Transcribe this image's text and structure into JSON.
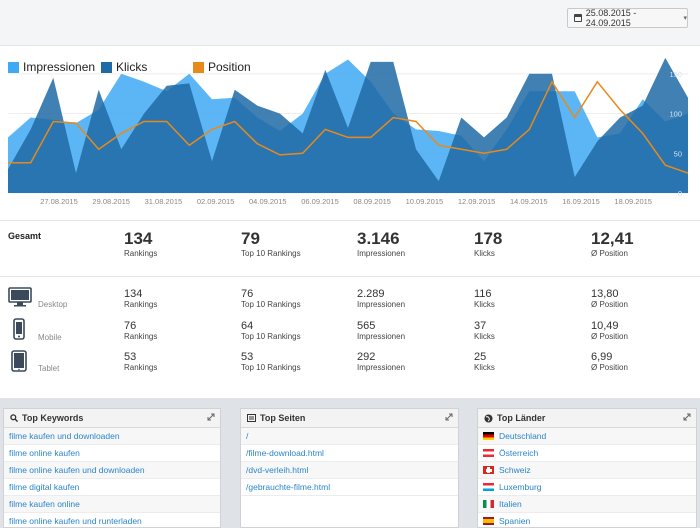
{
  "date_range": "25.08.2015 - 24.09.2015",
  "chart_data": {
    "type": "area",
    "x_ticks": [
      "27.08.2015",
      "29.08.2015",
      "31.08.2015",
      "02.09.2015",
      "04.09.2015",
      "06.09.2015",
      "08.09.2015",
      "10.09.2015",
      "12.09.2015",
      "14.09.2015",
      "16.09.2015",
      "18.09.2015"
    ],
    "y_ticks_right": [
      "0",
      "50",
      "100",
      "150"
    ],
    "legend": [
      "Impressionen",
      "Klicks",
      "Position"
    ],
    "colors": {
      "impressionen": "#3fa9f5",
      "klicks": "#1f6aa5",
      "position": "#e88a1a"
    },
    "series": [
      {
        "name": "Impressionen",
        "values": [
          70,
          95,
          92,
          88,
          105,
          150,
          140,
          128,
          150,
          118,
          120,
          95,
          78,
          100,
          150,
          168,
          140,
          100,
          80,
          78,
          72,
          40,
          80,
          128,
          128,
          128,
          70,
          75,
          118,
          90,
          100
        ]
      },
      {
        "name": "Klicks",
        "values": [
          30,
          80,
          145,
          25,
          130,
          55,
          100,
          135,
          138,
          40,
          130,
          110,
          100,
          75,
          155,
          82,
          165,
          165,
          55,
          15,
          95,
          70,
          95,
          150,
          150,
          20,
          65,
          95,
          110,
          170,
          120
        ]
      },
      {
        "name": "Position",
        "values": [
          38,
          38,
          90,
          88,
          55,
          75,
          90,
          90,
          60,
          80,
          90,
          62,
          48,
          50,
          80,
          70,
          70,
          95,
          90,
          60,
          55,
          50,
          55,
          80,
          140,
          95,
          140,
          105,
          75,
          35,
          25
        ]
      }
    ]
  },
  "totals": {
    "label": "Gesamt",
    "rankings": "134",
    "rankings_l": "Rankings",
    "top10": "79",
    "top10_l": "Top 10 Rankings",
    "impressions": "3.146",
    "impressions_l": "Impressionen",
    "clicks": "178",
    "clicks_l": "Klicks",
    "position": "12,41",
    "position_l": "Ø Position"
  },
  "devices": [
    {
      "name": "Desktop",
      "icon": "desktop-icon",
      "rankings": "134",
      "top10": "76",
      "impressions": "2.289",
      "clicks": "116",
      "position": "13,80"
    },
    {
      "name": "Mobile",
      "icon": "mobile-icon",
      "rankings": "76",
      "top10": "64",
      "impressions": "565",
      "clicks": "37",
      "position": "10,49"
    },
    {
      "name": "Tablet",
      "icon": "tablet-icon",
      "rankings": "53",
      "top10": "53",
      "impressions": "292",
      "clicks": "25",
      "position": "6,99"
    }
  ],
  "labels": {
    "rankings": "Rankings",
    "top10": "Top 10 Rankings",
    "impressions": "Impressionen",
    "clicks": "Klicks",
    "position": "Ø Position"
  },
  "widgets": {
    "keywords": {
      "title": "Top Keywords",
      "items": [
        "filme kaufen und downloaden",
        "filme online kaufen",
        "filme online kaufen und downloaden",
        "filme digital kaufen",
        "filme kaufen online",
        "filme online kaufen und runterladen"
      ]
    },
    "pages": {
      "title": "Top Seiten",
      "items": [
        "/",
        "/filme-download.html",
        "/dvd-verleih.html",
        "/gebrauchte-filme.html"
      ]
    },
    "countries": {
      "title": "Top Länder",
      "items": [
        {
          "name": "Deutschland",
          "flag": "de"
        },
        {
          "name": "Österreich",
          "flag": "at"
        },
        {
          "name": "Schweiz",
          "flag": "ch"
        },
        {
          "name": "Luxemburg",
          "flag": "lu"
        },
        {
          "name": "Italien",
          "flag": "it"
        },
        {
          "name": "Spanien",
          "flag": "es"
        }
      ]
    }
  }
}
